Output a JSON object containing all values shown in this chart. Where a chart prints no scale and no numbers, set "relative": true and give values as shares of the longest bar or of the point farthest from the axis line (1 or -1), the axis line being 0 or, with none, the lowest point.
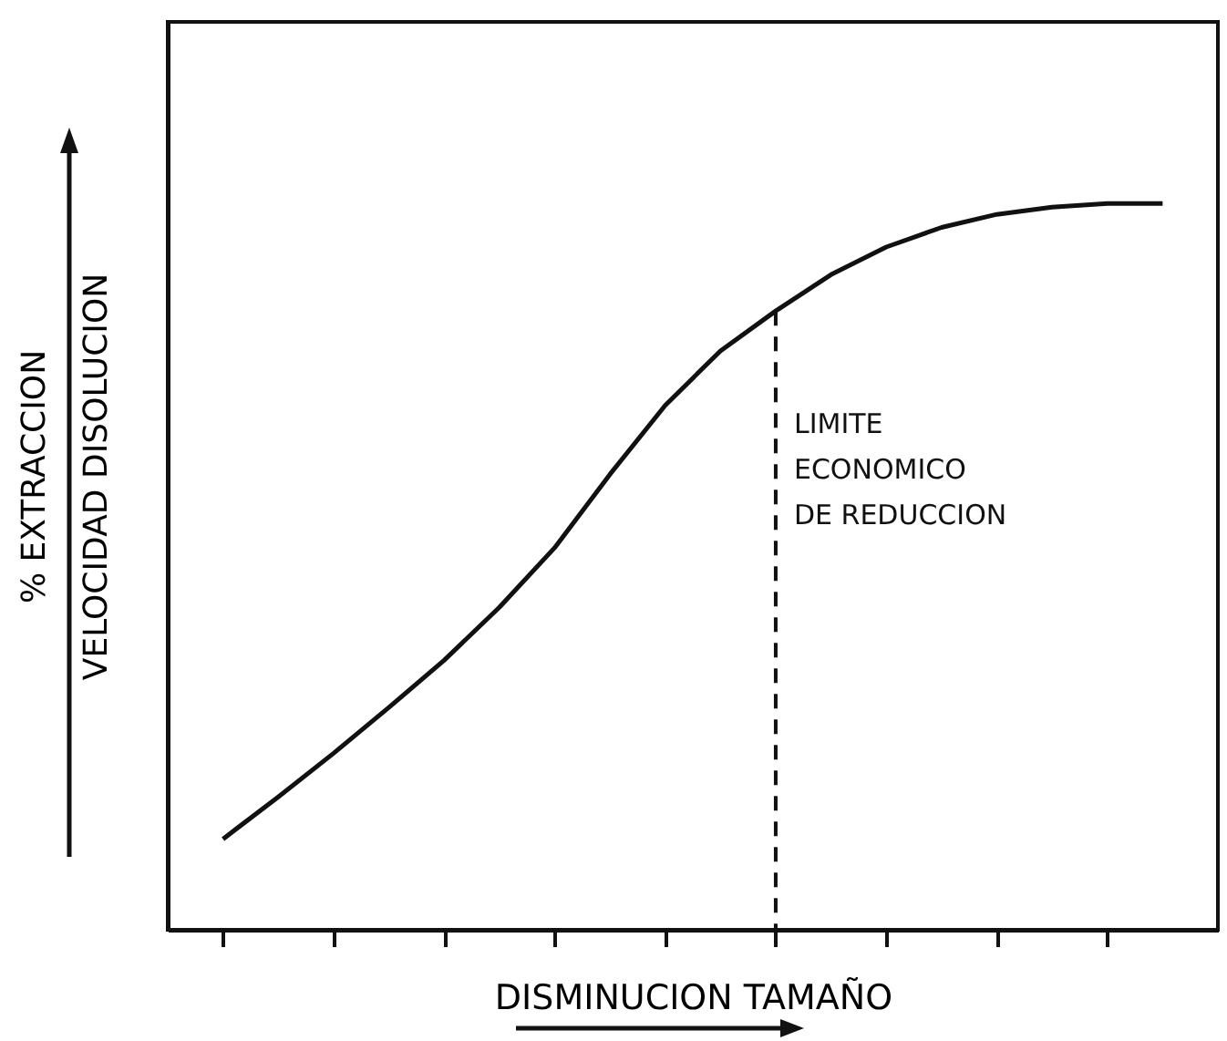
{
  "chart_data": {
    "type": "line",
    "relative": true,
    "xlabel": "DISMINUCION TAMAÑO",
    "ylabel": "% EXTRACCION\nVELOCIDAD DISOLUCION",
    "categories": [
      null,
      null,
      null,
      null,
      null,
      null,
      null,
      null,
      null,
      null,
      null,
      null,
      null,
      null,
      null,
      null,
      null,
      null
    ],
    "series": [
      {
        "color": "#111111",
        "values": [
          0.125,
          0.183,
          0.243,
          0.306,
          0.371,
          0.444,
          0.526,
          0.627,
          0.722,
          0.797,
          0.852,
          0.902,
          0.94,
          0.967,
          0.985,
          0.995,
          1,
          1
        ]
      }
    ],
    "annotations": [
      "LIMITE\nECONOMICO\nDE REDUCCION"
    ],
    "grid": false,
    "tick_labels": false,
    "marker": "none",
    "line_style": "solid"
  }
}
